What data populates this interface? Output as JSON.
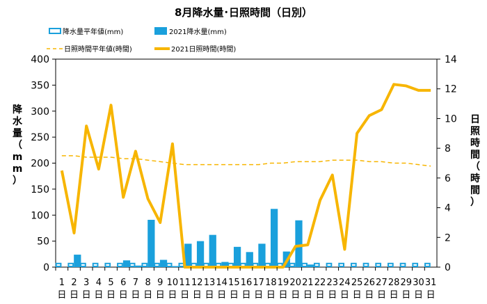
{
  "chart_data": {
    "type": "bar",
    "title": "8月降水量･日照時間（日別）",
    "ylabel_left": "降水量（mm）",
    "ylabel_right": "日照時間（時間）",
    "ylim_left": [
      0,
      400
    ],
    "ylim_right": [
      0,
      14
    ],
    "yticks_left": [
      "0",
      "50",
      "100",
      "150",
      "200",
      "250",
      "300",
      "350",
      "400"
    ],
    "yticks_right": [
      "0",
      "2",
      "4",
      "6",
      "8",
      "10",
      "12",
      "14"
    ],
    "categories": [
      "1",
      "2",
      "3",
      "4",
      "5",
      "6",
      "7",
      "8",
      "9",
      "10",
      "11",
      "12",
      "13",
      "14",
      "15",
      "16",
      "17",
      "18",
      "19",
      "20",
      "21",
      "22",
      "23",
      "24",
      "25",
      "26",
      "27",
      "28",
      "29",
      "30",
      "31"
    ],
    "day_suffix": "日",
    "legend": {
      "precip_normal": "降水量平年値(mm)",
      "precip_2021": "2021降水量(mm)",
      "sun_normal": "日照時間平年値(時間)",
      "sun_2021": "2021日照時間(時間)"
    },
    "series": [
      {
        "name": "降水量平年値(mm)",
        "axis": "left",
        "style": "bar-outline",
        "values": [
          7,
          7,
          7,
          7,
          7,
          7,
          7,
          7,
          7,
          7,
          7,
          7,
          7,
          7,
          7,
          7,
          7,
          7,
          7,
          7,
          7,
          7,
          7,
          7,
          7,
          7,
          7,
          7,
          7,
          7,
          7
        ]
      },
      {
        "name": "2021降水量(mm)",
        "axis": "left",
        "style": "bar",
        "values": [
          0,
          24,
          0,
          0,
          0,
          13,
          3,
          91,
          14,
          2,
          45,
          50,
          62,
          10,
          39,
          29,
          45,
          112,
          30,
          90,
          5,
          0,
          0,
          0,
          0,
          0,
          0,
          0,
          0,
          0,
          0
        ]
      },
      {
        "name": "日照時間平年値(時間)",
        "axis": "right",
        "style": "dashed-line",
        "values": [
          7.5,
          7.5,
          7.4,
          7.4,
          7.4,
          7.3,
          7.3,
          7.2,
          7.1,
          7.0,
          6.9,
          6.9,
          6.9,
          6.9,
          6.9,
          6.9,
          6.9,
          7.0,
          7.0,
          7.1,
          7.1,
          7.1,
          7.2,
          7.2,
          7.2,
          7.1,
          7.1,
          7.0,
          7.0,
          6.9,
          6.8
        ]
      },
      {
        "name": "2021日照時間(時間)",
        "axis": "right",
        "style": "line",
        "values": [
          6.5,
          2.3,
          9.5,
          6.6,
          10.9,
          4.7,
          7.8,
          4.6,
          3.0,
          8.3,
          0.0,
          0.0,
          0.0,
          0.0,
          0.0,
          0.0,
          0.0,
          0.0,
          0.0,
          1.4,
          1.5,
          4.5,
          6.2,
          1.2,
          9.0,
          10.2,
          10.6,
          12.3,
          12.2,
          11.9,
          11.9
        ]
      }
    ],
    "colors": {
      "precip_bar": "#1aa0dc",
      "sun_line": "#f7b500",
      "sun_normal_line": "#f7b500",
      "grid": "#000000"
    },
    "grid": false,
    "legend_position": "top"
  }
}
